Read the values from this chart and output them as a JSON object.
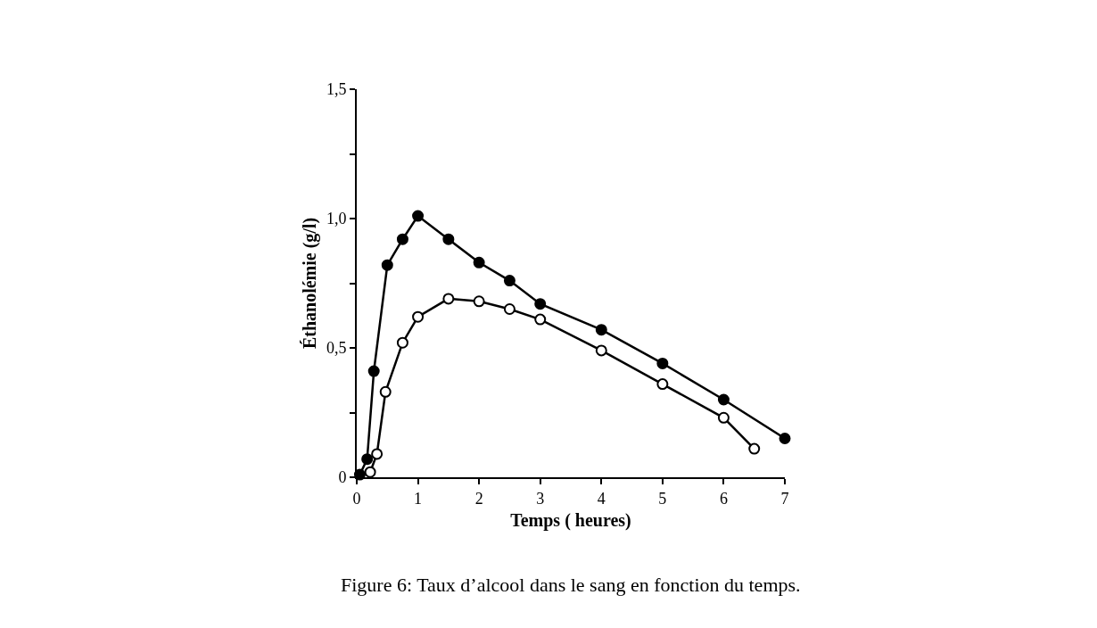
{
  "chart_data": {
    "type": "line",
    "xlabel": "Temps ( heures)",
    "ylabel": "Éthanolémie (g/l)",
    "annotations": [
      "Figure 6: Taux d’alcool dans le sang en fonction du temps."
    ],
    "marker": "circle",
    "xlim": [
      0,
      7
    ],
    "xticks": [
      0,
      1,
      2,
      3,
      4,
      5,
      6,
      7
    ],
    "ylim": [
      0,
      1.5
    ],
    "yticks": [
      {
        "value": 0,
        "label": "0"
      },
      {
        "value": 0.25,
        "label": null
      },
      {
        "value": 0.5,
        "label": "0,5"
      },
      {
        "value": 0.75,
        "label": null
      },
      {
        "value": 1.0,
        "label": "1,0"
      },
      {
        "value": 1.25,
        "label": null
      },
      {
        "value": 1.5,
        "label": "1,5"
      }
    ],
    "series": [
      {
        "color": "#000000",
        "x": [
          0.05,
          0.17,
          0.28,
          0.5,
          0.75,
          1.0,
          1.5,
          2.0,
          2.5,
          3.0,
          4.0,
          5.0,
          6.0,
          7.0
        ],
        "values": [
          0.01,
          0.07,
          0.41,
          0.82,
          0.92,
          1.01,
          0.92,
          0.83,
          0.76,
          0.67,
          0.57,
          0.44,
          0.3,
          0.15
        ]
      },
      {
        "color": "#000000",
        "x": [
          0.22,
          0.33,
          0.47,
          0.75,
          1.0,
          1.5,
          2.0,
          2.5,
          3.0,
          4.0,
          5.0,
          6.0,
          6.5
        ],
        "values": [
          0.02,
          0.09,
          0.33,
          0.52,
          0.62,
          0.69,
          0.68,
          0.65,
          0.61,
          0.49,
          0.36,
          0.23,
          0.11
        ]
      }
    ]
  }
}
